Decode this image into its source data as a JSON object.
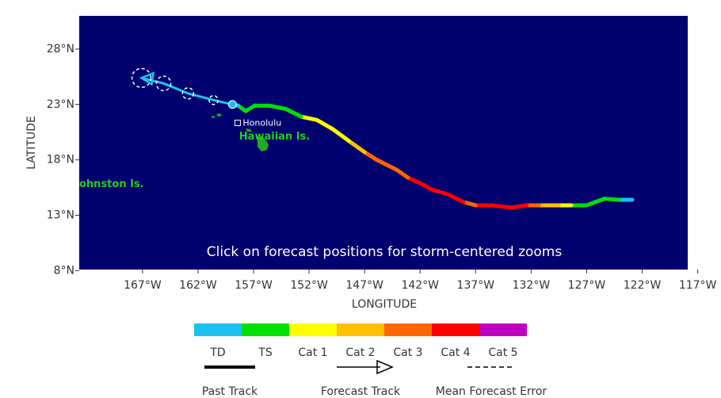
{
  "map": {
    "xlabel": "LONGITUDE",
    "ylabel": "LATITUDE",
    "xlim": [
      -172.7,
      -117.9
    ],
    "ylim": [
      8.1,
      31
    ],
    "xticks": [
      {
        "value": -167,
        "label": "167°W"
      },
      {
        "value": -162,
        "label": "162°W"
      },
      {
        "value": -157,
        "label": "157°W"
      },
      {
        "value": -152,
        "label": "152°W"
      },
      {
        "value": -147,
        "label": "147°W"
      },
      {
        "value": -142,
        "label": "142°W"
      },
      {
        "value": -137,
        "label": "137°W"
      },
      {
        "value": -132,
        "label": "132°W"
      },
      {
        "value": -127,
        "label": "127°W"
      },
      {
        "value": -122,
        "label": "122°W"
      },
      {
        "value": -117,
        "label": "117°W"
      }
    ],
    "yticks": [
      {
        "value": 8,
        "label": "8°N"
      },
      {
        "value": 13,
        "label": "13°N"
      },
      {
        "value": 18,
        "label": "18°N"
      },
      {
        "value": 23,
        "label": "23°N"
      },
      {
        "value": 28,
        "label": "28°N"
      }
    ],
    "background": "#00006e",
    "instruction": "Click on forecast positions for storm-centered zooms",
    "places": [
      {
        "label": "Honolulu",
        "lon": -158.4,
        "lat": 21.3,
        "color": "#ffffff"
      },
      {
        "label": "Hawaiian Is.",
        "lon": -158.3,
        "lat": 20.1,
        "color": "#22cc22"
      },
      {
        "label": "ohnston Is.",
        "lon": -172.7,
        "lat": 15.8,
        "color": "#22cc22"
      }
    ],
    "track": [
      {
        "lon": -122.9,
        "lat": 14.4,
        "color": "#1ec0f0"
      },
      {
        "lon": -124.1,
        "lat": 14.4,
        "color": "#00e000"
      },
      {
        "lon": -125.4,
        "lat": 14.5,
        "color": "#00e000"
      },
      {
        "lon": -127.0,
        "lat": 13.9,
        "color": "#00e000"
      },
      {
        "lon": -128.4,
        "lat": 13.9,
        "color": "#ffff00"
      },
      {
        "lon": -129.5,
        "lat": 13.9,
        "color": "#ffc000"
      },
      {
        "lon": -131.3,
        "lat": 13.9,
        "color": "#ff6600"
      },
      {
        "lon": -132.4,
        "lat": 13.9,
        "color": "#ff0000"
      },
      {
        "lon": -133.8,
        "lat": 13.7,
        "color": "#ff0000"
      },
      {
        "lon": -135.6,
        "lat": 13.9,
        "color": "#ff0000"
      },
      {
        "lon": -137.0,
        "lat": 13.9,
        "color": "#ff6600"
      },
      {
        "lon": -138.1,
        "lat": 14.2,
        "color": "#ff0000"
      },
      {
        "lon": -139.5,
        "lat": 14.9,
        "color": "#ff0000"
      },
      {
        "lon": -140.9,
        "lat": 15.3,
        "color": "#ff0000"
      },
      {
        "lon": -142.0,
        "lat": 15.9,
        "color": "#ff0000"
      },
      {
        "lon": -143.1,
        "lat": 16.4,
        "color": "#ff6600"
      },
      {
        "lon": -144.1,
        "lat": 17.1,
        "color": "#ff6600"
      },
      {
        "lon": -145.9,
        "lat": 18.0,
        "color": "#ff6600"
      },
      {
        "lon": -147.0,
        "lat": 18.7,
        "color": "#ffc000"
      },
      {
        "lon": -148.4,
        "lat": 19.7,
        "color": "#ffff00"
      },
      {
        "lon": -149.9,
        "lat": 20.8,
        "color": "#ffff00"
      },
      {
        "lon": -151.3,
        "lat": 21.6,
        "color": "#ffff00"
      },
      {
        "lon": -152.7,
        "lat": 21.9,
        "color": "#00e000"
      },
      {
        "lon": -154.1,
        "lat": 22.6,
        "color": "#00e000"
      },
      {
        "lon": -155.6,
        "lat": 22.9,
        "color": "#00e000"
      },
      {
        "lon": -156.9,
        "lat": 22.9,
        "color": "#00e000"
      },
      {
        "lon": -157.7,
        "lat": 22.4,
        "color": "#00e000"
      },
      {
        "lon": -158.4,
        "lat": 22.9,
        "color": "#1ec0f0"
      },
      {
        "lon": -158.9,
        "lat": 23.0,
        "color": "#1ec0f0"
      }
    ],
    "forecast_color": "#1ec0f0",
    "forecast": [
      {
        "lon": -160.6,
        "lat": 23.4,
        "error": 0.4
      },
      {
        "lon": -162.9,
        "lat": 24.0,
        "error": 0.5
      },
      {
        "lon": -165.1,
        "lat": 24.9,
        "error": 0.65
      },
      {
        "lon": -167.1,
        "lat": 25.4,
        "error": 0.85
      }
    ]
  },
  "legend": {
    "categories": [
      {
        "label": "TD",
        "color": "#1ec0f0"
      },
      {
        "label": "TS",
        "color": "#00e000"
      },
      {
        "label": "Cat 1",
        "color": "#ffff00"
      },
      {
        "label": "Cat 2",
        "color": "#ffc000"
      },
      {
        "label": "Cat 3",
        "color": "#ff6600"
      },
      {
        "label": "Cat 4",
        "color": "#ff0000"
      },
      {
        "label": "Cat 5",
        "color": "#c000c0"
      }
    ],
    "past_track": "Past Track",
    "forecast_track": "Forecast Track",
    "error": "Mean Forecast Error"
  }
}
